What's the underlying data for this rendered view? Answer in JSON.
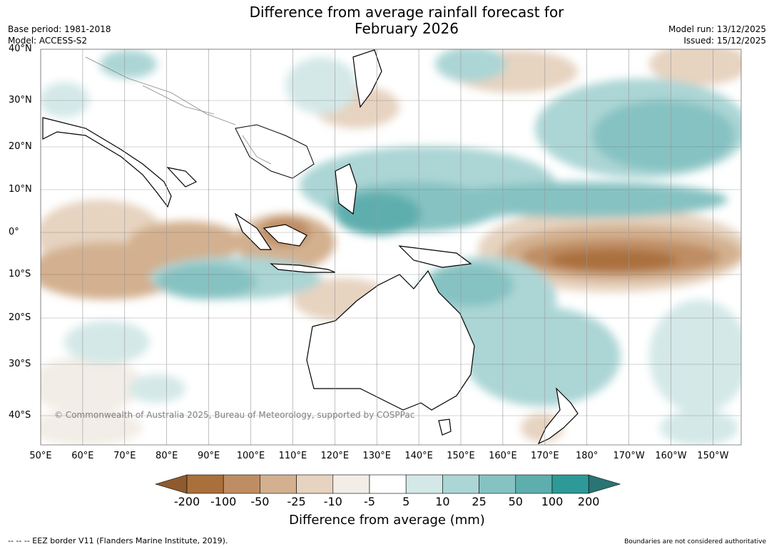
{
  "title": {
    "line1": "Difference from average rainfall forecast for",
    "line2": "February 2026"
  },
  "meta": {
    "base_period": "Base period: 1981-2018",
    "model": "Model: ACCESS-S2",
    "model_run": "Model run: 13/12/2025",
    "issued": "Issued: 15/12/2025"
  },
  "map": {
    "latitude_labels": [
      "40°N",
      "30°N",
      "20°N",
      "10°N",
      "0°",
      "10°S",
      "20°S",
      "30°S",
      "40°S"
    ],
    "longitude_labels": [
      "50°E",
      "60°E",
      "70°E",
      "80°E",
      "90°E",
      "100°E",
      "110°E",
      "120°E",
      "130°E",
      "140°E",
      "150°E",
      "160°E",
      "170°E",
      "180°",
      "170°W",
      "160°W",
      "150°W"
    ],
    "copyright": "© Commonwealth of Australia 2025, Bureau of Meteorology, supported by COSPPac"
  },
  "colorbar": {
    "ticks": [
      "-200",
      "-100",
      "-50",
      "-25",
      "-10",
      "-5",
      "5",
      "10",
      "25",
      "50",
      "100",
      "200"
    ],
    "colors": [
      "#8f5a2e",
      "#aa703c",
      "#bf8d64",
      "#d3b08f",
      "#e6d3c0",
      "#f2ede6",
      "#ffffff",
      "#d4e8e8",
      "#acd5d5",
      "#86c2c2",
      "#5eaeae",
      "#2e9a98",
      "#2a7474"
    ],
    "label": "Difference from average (mm)"
  },
  "footer": {
    "eez": "--  --  -- EEZ border V11 (Flanders Marine Institute, 2019).",
    "disclaimer": "Boundaries are not considered authoritative"
  }
}
